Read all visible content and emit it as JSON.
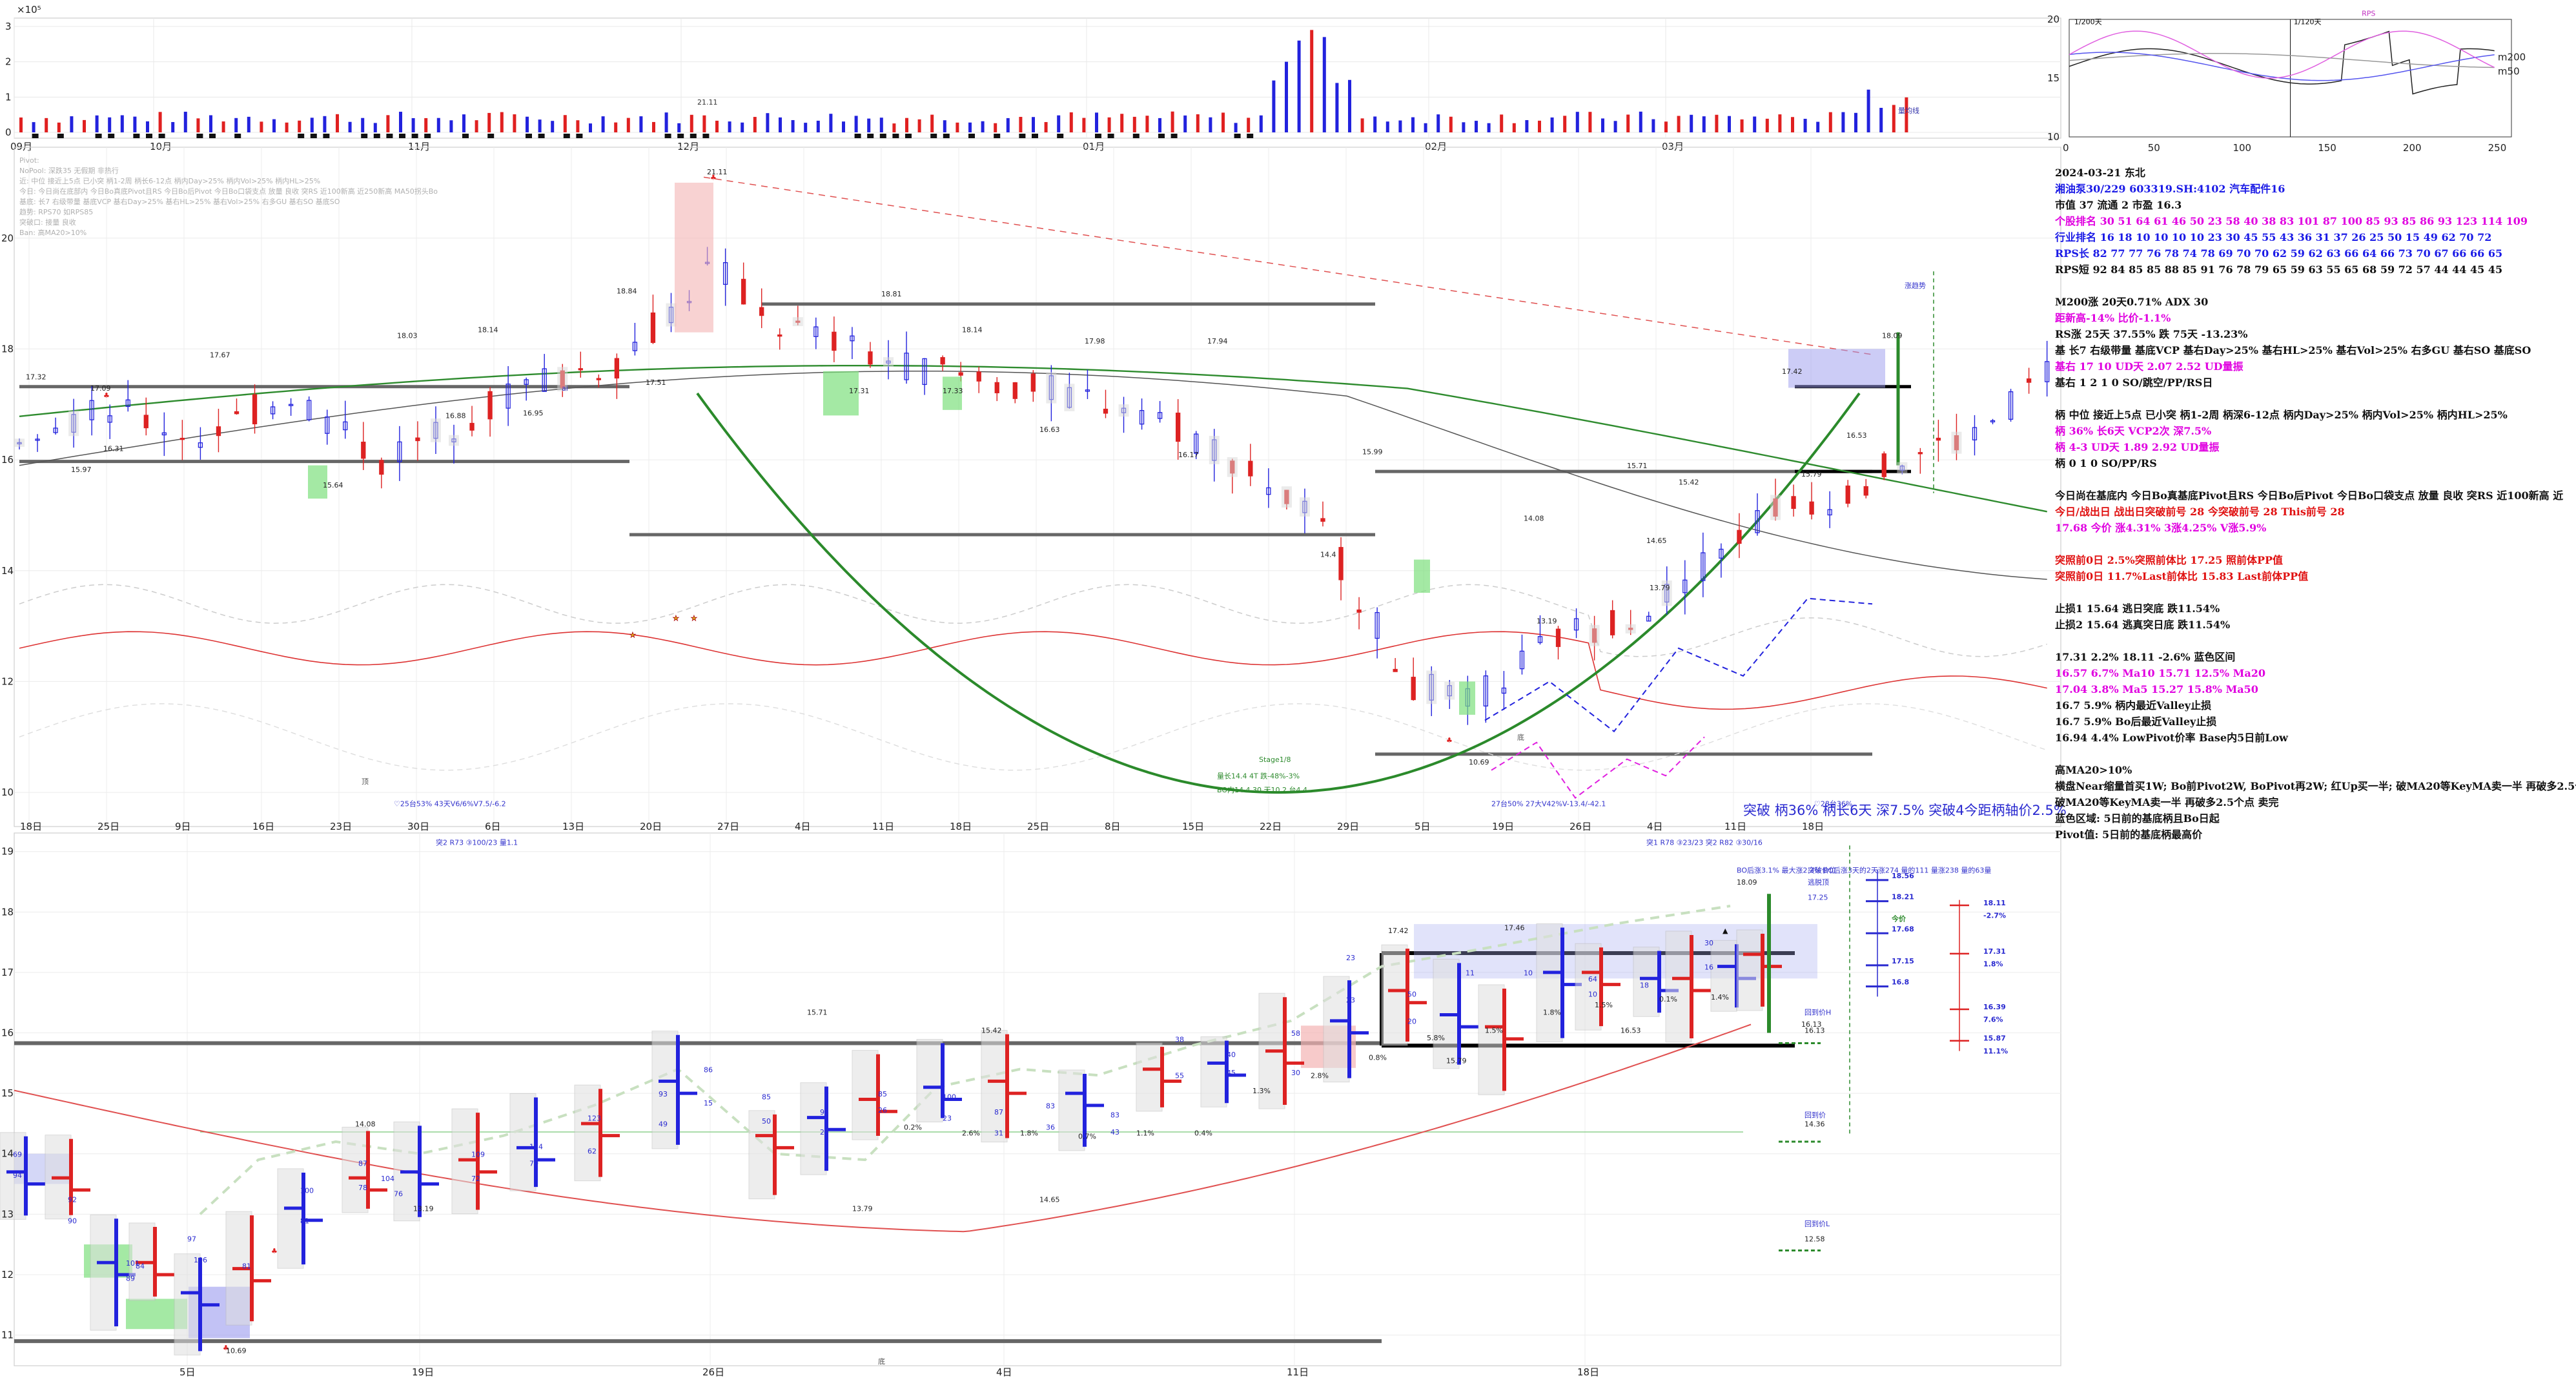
{
  "volume_panel": {
    "exponent_label": "×10⁵",
    "y_ticks": [
      "0",
      "1",
      "2",
      "3"
    ],
    "month_labels": [
      "09月",
      "10月",
      "11月",
      "12月",
      "01月",
      "02月",
      "03月"
    ],
    "marker_label": "21.11",
    "tiny_label": "量均线"
  },
  "main_chart": {
    "info_text": [
      "Pivot:",
      "NoPool: 深跌35 无假期 非热行",
      "近: 中位 接近上5点 已小突 柄1-2周 柄长6-12点 柄内Day>25% 柄内Vol>25% 柄内HL>25%",
      "今日: 今日尚在底部内 今日Bo真底Pivot且RS 今日Bo后Pivot 今日Bo口袋支点 放量 良收 突RS 近100新高 近250新高 MA50拐头Bo",
      "基底: 长7 右级带量 基底VCP 基右Day>25% 基右HL>25% 基右Vol>25% 右多GU 基右SO 基底SO",
      "趋势: RPS70 如RPS85",
      "突破口: 接量 良收",
      "Ban: 高MA20>10%"
    ],
    "x_labels": [
      "18日",
      "25日",
      "9日",
      "16日",
      "23日",
      "30日",
      "6日",
      "13日",
      "20日",
      "27日",
      "4日",
      "11日",
      "18日",
      "25日",
      "8日",
      "15日",
      "22日",
      "29日",
      "5日",
      "19日",
      "26日",
      "4日",
      "11日",
      "18日"
    ],
    "y_ticks": [
      "10",
      "12",
      "14",
      "16",
      "18",
      "20"
    ],
    "price_labels": [
      "17.32",
      "17.09",
      "17.67",
      "15.97",
      "16.31",
      "15.64",
      "18.03",
      "18.14",
      "16.88",
      "16.95",
      "18.84",
      "17.51",
      "21.11",
      "18.81",
      "18.14",
      "17.31",
      "17.33",
      "16.63",
      "17.98",
      "17.94",
      "16.17",
      "15.99",
      "14.4",
      "14.08",
      "13.19",
      "15.71",
      "15.42",
      "14.65",
      "13.79",
      "10.69",
      "15.79",
      "16.53",
      "17.42",
      "18.09"
    ],
    "annotations": {
      "stage": "Stage1/8",
      "stage_line1": "量长14.4 4T 跌-48%-3%",
      "stage_line2": "BO内14.4 30 天10.2 台4.4",
      "left_vcp": "♡25台53% 43天V6/6%V7.5/-6.2",
      "left_break": "突2 R73 ③100/23 量1.1",
      "right_vcp": "27台50% 27大V42%V-13.4/-42.1",
      "right_heart": "♡28台36%",
      "right_break": "突1 R78 ③23/23 突2 R82 ③30/16",
      "bo_line": "BO后涨3.1% 最大涨2.3% BO后涨3天的2天涨274 量的111 量涨238 量的63量",
      "left_tag": "顶",
      "bottom_tag": "底",
      "right_top_tag": "涨趋势",
      "small_label": "ai"
    },
    "chart_data": {
      "type": "candlestick",
      "title": "",
      "y_range": [
        9.5,
        21.5
      ],
      "levels": [
        17.32,
        18.81,
        15.64,
        14.65,
        15.79,
        10.69
      ],
      "series_ma": [
        {
          "name": "m200"
        },
        {
          "name": "m50"
        }
      ]
    }
  },
  "mini_chart": {
    "y_ticks": [
      "10",
      "15",
      "20"
    ],
    "x_ticks": [
      "0",
      "50",
      "100",
      "150",
      "200",
      "250"
    ],
    "legend": [
      "m200",
      "m50"
    ],
    "labels": [
      "1/200天",
      "1/120天",
      "RPS"
    ]
  },
  "side_panel": {
    "date_line": "2024-03-21 东北",
    "stock_line": "湘油泵30/229 603319.SH:4102 汽车配件16",
    "cap_line": "市值 37  流通 2  市盈 16.3",
    "rank_line": "个股排名 30  51  64  61  46  50  23  58  40  38  83  101  87  100  85  93  85  86  93  123  114  109",
    "ind_line": "行业排名 16  18  10  10  10  10  23  30  45  55  43  36  31  37  26  25  50  15  49  62  70  72",
    "rps_line": "RPS长 82  77  77  76  78  74  78  69  70  70  62  59  62  63  66  64  66  73  70  67  66  66  65",
    "rpsc_line": "RPS短 92  84  85  85  88  85  91  76  78  79  65  59  63  55  65  68  59  72  57  44  44  45  45",
    "m200_line": "M200涨 20天0.71%  ADX 30",
    "dist_line": "距新高-14%  比价-1.1%",
    "rs_line": "RS涨 25天 37.55% 跌 75天 -13.23%",
    "base_line": "基 长7 右级带量 基底VCP 基右Day>25% 基右HL>25% 基右Vol>25% 右多GU 基右SO 基底SO",
    "base_ud": "基右 17 10 UD天 2.07 2.52 UD量振",
    "base_so": "基右 1 2 1 0 SO/跳空/PP/RS日",
    "handle_line": "柄 中位 接近上5点 已小突 柄1-2周 柄深6-12点 柄内Day>25% 柄内Vol>25% 柄内HL>25%",
    "handle_36": "柄 36% 长6天  VCP2次 深7.5%",
    "handle_ud": "柄 4-3 UD天 1.89 2.92 UD量振",
    "handle_so": "柄 0 1 0 SO/PP/RS",
    "today_line": "今日尚在基底内 今日Bo真基底Pivot且RS 今日Bo后Pivot 今日Bo口袋支点 放量 良收 突RS 近100新高 近",
    "today_tag": "今日/战出日  战出日突破前号 28 今突破前号 28 This前号 28",
    "today_val": "17.68 今价  涨4.31% 3涨4.25% V涨5.9%",
    "break1": "突照前0日 2.5%突照前体比 17.25 照前体PP值",
    "break2": "突照前0日 11.7%Last前体比 15.83 Last前体PP值",
    "stop1": "止损1 15.64 逃日突底 跌11.54%",
    "stop2": "止损2 15.64 逃真突日底 跌11.54%",
    "zone_head": "17.31 2.2% 18.11 -2.6% 蓝色区间",
    "ma_a": "16.57 6.7% Ma10   15.71 12.5% Ma20",
    "ma_b": "17.04 3.8% Ma5    15.27 15.8% Ma50",
    "valley1": "16.7 5.9% 柄内最近Valley止损",
    "valley2": "16.7 5.9% Bo后最近Valley止损",
    "pivot_low": "16.94 4.4% LowPivot价率  Base内5日前Low",
    "ma20_head": "高MA20>10%",
    "note1": "横盘Near缩量首买1W; Bo前Pivot2W, BoPivot再2W; 红Up买一半; 破MA20等KeyMA卖一半 再破多2.5个点",
    "note2": "破MA20等KeyMA卖一半 再破多2.5个点 卖完",
    "note3": "蓝色区域: 5日前的基底柄且Bo日起",
    "note4": "Pivot值: 5日前的基底柄最高价"
  },
  "divider_banner": "突破 柄36% 柄长6天 深7.5% 突破4今距柄轴价2.5%",
  "lower_chart": {
    "x_labels": [
      "5日",
      "19日",
      "26日",
      "4日",
      "11日",
      "18日"
    ],
    "y_ticks": [
      "11",
      "12",
      "13",
      "14",
      "15",
      "16",
      "17",
      "18",
      "19"
    ],
    "bottom_tag": "底",
    "price_labels": [
      "10.69",
      "13.19",
      "14.08",
      "15.71",
      "15.42",
      "14.65",
      "13.79",
      "16.13",
      "15.79",
      "16.53",
      "17.42",
      "17.46",
      "18.09"
    ],
    "bar_numbers": [
      "69",
      "94",
      "92",
      "90",
      "101",
      "84",
      "97",
      "89",
      "106",
      "81",
      "100",
      "81",
      "87",
      "78",
      "104",
      "76",
      "109",
      "72",
      "114",
      "70",
      "123",
      "62",
      "93",
      "49",
      "86",
      "15",
      "85",
      "50",
      "93",
      "25",
      "85",
      "26",
      "100",
      "23",
      "87",
      "31",
      "83",
      "36",
      "83",
      "43",
      "38",
      "55",
      "40",
      "45",
      "58",
      "30",
      "23",
      "23",
      "50",
      "20",
      "11",
      "10",
      "64",
      "10",
      "18",
      "30",
      "16"
    ],
    "pct_labels": [
      "0.2%",
      "2.6%",
      "1.8%",
      "0.7%",
      "1.1%",
      "0.4%",
      "1.3%",
      "2.8%",
      "0.8%",
      "5.8%",
      "1.5%",
      "1.8%",
      "1.5%",
      "0.1%",
      "1.4%"
    ],
    "right_labels": {
      "break_price": "突破价位",
      "break_val": "17.25",
      "break_tag": "逃脱顶",
      "h_label": "回到价H",
      "h_val": "16.13",
      "mid_label": "回到价",
      "mid_val": "14.36",
      "l_label": "回到价L",
      "l_val": "12.58",
      "ladder_a": [
        "18.56",
        "18.21",
        "今价",
        "17.68",
        "17.15",
        "16.8"
      ],
      "ladder_b": [
        "18.11",
        "-2.7%",
        "17.31",
        "1.8%",
        "16.39",
        "7.6%",
        "15.87",
        "11.1%"
      ]
    }
  }
}
